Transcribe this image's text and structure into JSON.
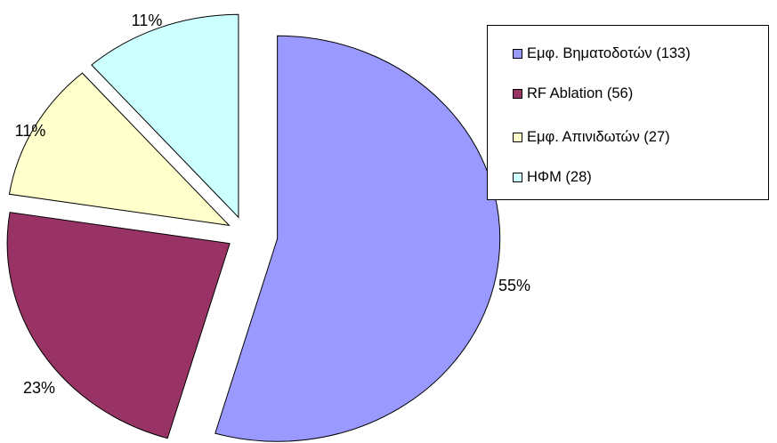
{
  "chart_data": {
    "type": "pie",
    "title": "",
    "exploded": true,
    "slices": [
      {
        "label": "Εμφ. Βηματοδοτών (133)",
        "value": 133,
        "percent_label": "55%",
        "color": "#9999ff"
      },
      {
        "label": "RF Ablation (56)",
        "value": 56,
        "percent_label": "23%",
        "color": "#993366"
      },
      {
        "label": "Εμφ. Απινιδωτών (27)",
        "value": 27,
        "percent_label": "11%",
        "color": "#ffffcc"
      },
      {
        "label": "ΗΦΜ (28)",
        "value": 28,
        "percent_label": "11%",
        "color": "#ccffff"
      }
    ],
    "legend": {
      "position": "top-right"
    }
  }
}
